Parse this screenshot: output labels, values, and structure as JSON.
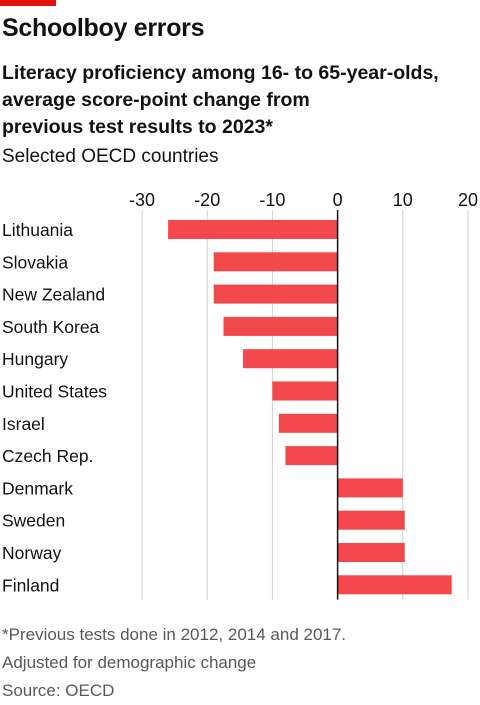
{
  "header": {
    "headline": "Schoolboy errors",
    "subtitle_lines": [
      "Literacy proficiency among 16- to 65-year-olds,",
      "average score-point change from",
      "previous test results to 2023*"
    ],
    "subtitle2": "Selected OECD countries"
  },
  "footer": {
    "note": "*Previous tests done in 2012, 2014 and 2017.",
    "note2": "Adjusted for demographic change",
    "source": "Source: OECD"
  },
  "colors": {
    "bar": "#f2484b",
    "accent": "#e3120b",
    "grid": "#d0d0d0",
    "zero_line": "#121212"
  },
  "chart_data": {
    "type": "bar",
    "orientation": "horizontal",
    "categories": [
      "Lithuania",
      "Slovakia",
      "New Zealand",
      "South Korea",
      "Hungary",
      "United States",
      "Israel",
      "Czech Rep.",
      "Denmark",
      "Sweden",
      "Norway",
      "Finland"
    ],
    "values": [
      -26,
      -19,
      -19,
      -17.5,
      -14.5,
      -10,
      -9,
      -8,
      10,
      10.3,
      10.3,
      17.5
    ],
    "xlim": [
      -30,
      20
    ],
    "xticks": [
      -30,
      -20,
      -10,
      0,
      10,
      20
    ],
    "tick_labels": [
      "-30",
      "-20",
      "-10",
      "0",
      "10",
      "20"
    ],
    "grid": true,
    "title": "",
    "xlabel": "",
    "ylabel": ""
  }
}
